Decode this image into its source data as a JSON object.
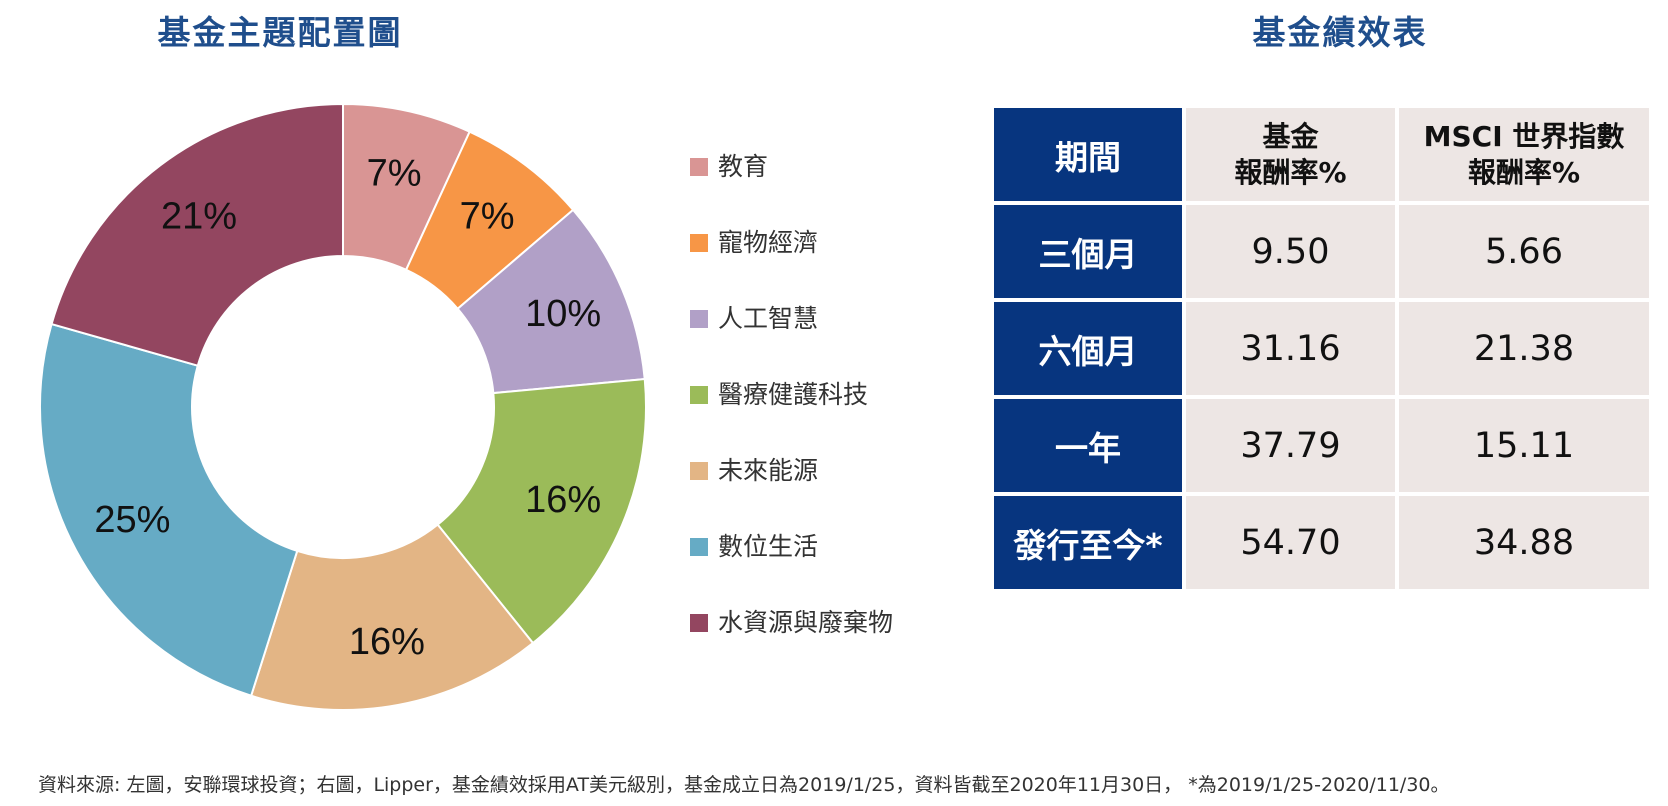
{
  "donut": {
    "title": "基金主題配置圖"
  },
  "chart_data": [
    {
      "type": "pie",
      "title": "基金主題配置圖",
      "categories": [
        "教育",
        "寵物經濟",
        "人工智慧",
        "醫療健護科技",
        "未來能源",
        "數位生活",
        "水資源與廢棄物"
      ],
      "values": [
        7,
        7,
        10,
        16,
        16,
        25,
        21
      ],
      "labels": [
        "7%",
        "7%",
        "10%",
        "16%",
        "16%",
        "25%",
        "21%"
      ],
      "colors": [
        "#d99594",
        "#f79646",
        "#b1a0c7",
        "#9bbb59",
        "#e3b585",
        "#66abc5",
        "#934660"
      ],
      "legend_position": "right"
    },
    {
      "type": "table",
      "title": "基金績效表",
      "columns": [
        "期間",
        "基金報酬率%",
        "MSCI 世界指數報酬率%"
      ],
      "rows": [
        [
          "三個月",
          "9.50",
          "5.66"
        ],
        [
          "六個月",
          "31.16",
          "21.38"
        ],
        [
          "一年",
          "37.79",
          "15.11"
        ],
        [
          "發行至今*",
          "54.70",
          "34.88"
        ]
      ]
    }
  ],
  "legend": [
    {
      "label": "教育",
      "color": "#d99594"
    },
    {
      "label": "寵物經濟",
      "color": "#f79646"
    },
    {
      "label": "人工智慧",
      "color": "#b1a0c7"
    },
    {
      "label": "醫療健護科技",
      "color": "#9bbb59"
    },
    {
      "label": "未來能源",
      "color": "#e3b585"
    },
    {
      "label": "數位生活",
      "color": "#66abc5"
    },
    {
      "label": "水資源與廢棄物",
      "color": "#934660"
    }
  ],
  "table": {
    "title": "基金績效表",
    "header": {
      "period": "期間",
      "fund_line1": "基金",
      "fund_line2": "報酬率%",
      "msci_line1": "MSCI 世界指數",
      "msci_line2": "報酬率%"
    },
    "rows": [
      {
        "period": "三個月",
        "fund": "9.50",
        "msci": "5.66"
      },
      {
        "period": "六個月",
        "fund": "31.16",
        "msci": "21.38"
      },
      {
        "period": "一年",
        "fund": "37.79",
        "msci": "15.11"
      },
      {
        "period": "發行至今*",
        "fund": "54.70",
        "msci": "34.88"
      }
    ]
  },
  "footnote": "資料來源: 左圖，安聯環球投資；右圖，Lipper，基金績效採用AT美元級別，基金成立日為2019/1/25，資料皆截至2020年11月30日， *為2019/1/25-2020/11/30。"
}
